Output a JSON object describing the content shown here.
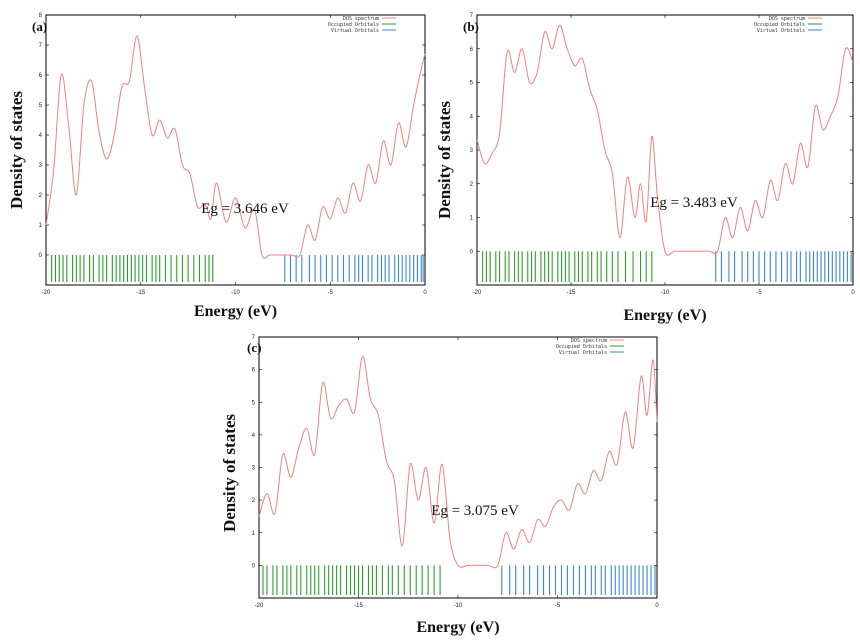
{
  "chart_data": [
    {
      "type": "line",
      "panel_label": "(a)",
      "annotation": "Eg = 3.646 eV",
      "xlabel": "Energy (eV)",
      "ylabel": "Density of states",
      "xlim": [
        -20,
        0
      ],
      "ylim": [
        -1,
        8
      ],
      "x_ticks": [
        "-20",
        "-15",
        "-10",
        "-5",
        "0"
      ],
      "y_ticks": [
        "0",
        "1",
        "2",
        "3",
        "4",
        "5",
        "6",
        "7",
        "8"
      ],
      "legend": [
        "DOS spectrum",
        "Occupied Orbitals",
        "Virtual Orbitals"
      ],
      "colors": {
        "dos": "#f08080",
        "occupied": "#2aa02a",
        "virtual": "#3a86d6"
      },
      "series": [
        {
          "name": "DOS spectrum",
          "x": [
            -20,
            -19.6,
            -19.2,
            -18.8,
            -18.4,
            -18.0,
            -17.6,
            -17.2,
            -16.8,
            -16.4,
            -16.0,
            -15.6,
            -15.2,
            -14.8,
            -14.4,
            -14.0,
            -13.6,
            -13.2,
            -12.8,
            -12.4,
            -12.0,
            -11.6,
            -11.3,
            -11.0,
            -10.5,
            -10.0,
            -9.5,
            -9.0,
            -8.6,
            -8.2,
            -7.8,
            -7.4,
            -7.0,
            -6.6,
            -6.2,
            -5.8,
            -5.4,
            -5.0,
            -4.6,
            -4.2,
            -3.8,
            -3.4,
            -3.0,
            -2.6,
            -2.2,
            -1.8,
            -1.4,
            -1.0,
            -0.6,
            -0.2,
            0
          ],
          "y": [
            1.0,
            2.8,
            6.0,
            4.3,
            2.0,
            5.0,
            5.8,
            4.1,
            3.2,
            4.0,
            5.6,
            5.8,
            7.3,
            5.6,
            4.0,
            4.5,
            3.9,
            4.2,
            3.0,
            2.7,
            1.6,
            1.7,
            1.2,
            2.4,
            1.1,
            1.9,
            0.9,
            1.5,
            0.0,
            0.0,
            0.0,
            0.0,
            0.0,
            0.0,
            1.0,
            0.5,
            1.6,
            1.2,
            1.9,
            1.4,
            2.4,
            1.8,
            3.0,
            2.4,
            3.8,
            3.0,
            4.4,
            3.6,
            5.0,
            6.2,
            6.7
          ]
        },
        {
          "name": "Occupied Orbitals",
          "x": [
            -19.7,
            -19.5,
            -19.3,
            -19.1,
            -18.9,
            -18.6,
            -18.4,
            -18.2,
            -18.0,
            -17.7,
            -17.5,
            -17.2,
            -17.0,
            -16.8,
            -16.5,
            -16.3,
            -16.1,
            -15.9,
            -15.7,
            -15.5,
            -15.3,
            -15.1,
            -14.9,
            -14.7,
            -14.4,
            -14.2,
            -14.0,
            -13.7,
            -13.4,
            -13.1,
            -12.8,
            -12.5,
            -12.2,
            -11.9,
            -11.6,
            -11.4,
            -11.2
          ]
        },
        {
          "name": "Virtual Orbitals",
          "x": [
            -7.4,
            -7.1,
            -6.8,
            -6.5,
            -6.1,
            -5.8,
            -5.5,
            -5.2,
            -4.9,
            -4.6,
            -4.3,
            -4.0,
            -3.7,
            -3.5,
            -3.3,
            -3.0,
            -2.8,
            -2.5,
            -2.3,
            -2.1,
            -1.9,
            -1.6,
            -1.4,
            -1.2,
            -1.0,
            -0.8,
            -0.6,
            -0.4,
            -0.2,
            -0.1
          ]
        }
      ]
    },
    {
      "type": "line",
      "panel_label": "(b)",
      "annotation": "Eg = 3.483 eV",
      "xlabel": "Energy (eV)",
      "ylabel": "Density of states",
      "xlim": [
        -20,
        0
      ],
      "ylim": [
        -1,
        7
      ],
      "x_ticks": [
        "-20",
        "-15",
        "-10",
        "-5",
        "0"
      ],
      "y_ticks": [
        "0",
        "1",
        "2",
        "3",
        "4",
        "5",
        "6",
        "7"
      ],
      "legend": [
        "DOS spectrum",
        "Occupied Orbitals",
        "Virtual Orbitals"
      ],
      "colors": {
        "dos": "#f08080",
        "occupied": "#2aa02a",
        "virtual": "#3a86d6"
      },
      "series": [
        {
          "name": "DOS spectrum",
          "x": [
            -20,
            -19.6,
            -19.2,
            -18.8,
            -18.4,
            -18.0,
            -17.6,
            -17.2,
            -16.8,
            -16.4,
            -16.0,
            -15.6,
            -15.2,
            -14.8,
            -14.4,
            -14.0,
            -13.6,
            -13.2,
            -12.8,
            -12.4,
            -12.0,
            -11.6,
            -11.3,
            -11.0,
            -10.7,
            -10.4,
            -10.0,
            -9.5,
            -9.0,
            -8.5,
            -8.0,
            -7.6,
            -7.2,
            -6.8,
            -6.4,
            -6.0,
            -5.6,
            -5.2,
            -4.8,
            -4.4,
            -4.0,
            -3.6,
            -3.2,
            -2.8,
            -2.4,
            -2.0,
            -1.6,
            -1.2,
            -0.8,
            -0.4,
            0
          ],
          "y": [
            3.3,
            2.6,
            2.9,
            3.5,
            5.9,
            5.3,
            6.0,
            5.0,
            5.3,
            6.5,
            6.0,
            6.7,
            6.0,
            5.5,
            5.7,
            4.8,
            4.2,
            3.0,
            2.3,
            0.4,
            2.2,
            1.0,
            2.0,
            0.9,
            3.4,
            1.6,
            0.0,
            0.0,
            0.0,
            0.0,
            0.0,
            0.0,
            0.0,
            1.0,
            0.4,
            1.3,
            0.6,
            1.5,
            1.0,
            2.1,
            1.5,
            2.6,
            2.0,
            3.2,
            2.5,
            4.3,
            3.6,
            4.0,
            4.6,
            6.0,
            5.6
          ]
        },
        {
          "name": "Occupied Orbitals",
          "x": [
            -19.7,
            -19.5,
            -19.3,
            -19.0,
            -18.8,
            -18.5,
            -18.3,
            -18.0,
            -17.8,
            -17.6,
            -17.3,
            -17.1,
            -16.9,
            -16.6,
            -16.4,
            -16.2,
            -16.0,
            -15.7,
            -15.5,
            -15.3,
            -15.1,
            -14.8,
            -14.6,
            -14.4,
            -14.1,
            -13.9,
            -13.6,
            -13.4,
            -13.1,
            -12.8,
            -12.5,
            -12.1,
            -11.7,
            -11.3,
            -11.0,
            -10.7
          ]
        },
        {
          "name": "Virtual Orbitals",
          "x": [
            -7.3,
            -7.0,
            -6.6,
            -6.3,
            -5.9,
            -5.6,
            -5.3,
            -5.0,
            -4.7,
            -4.4,
            -4.1,
            -3.8,
            -3.5,
            -3.3,
            -3.0,
            -2.8,
            -2.5,
            -2.3,
            -2.1,
            -1.9,
            -1.7,
            -1.5,
            -1.3,
            -1.1,
            -0.9,
            -0.7,
            -0.5,
            -0.3,
            -0.1
          ]
        }
      ]
    },
    {
      "type": "line",
      "panel_label": "(c)",
      "annotation": "Eg = 3.075 eV",
      "xlabel": "Energy (eV)",
      "ylabel": "Density of states",
      "xlim": [
        -20,
        0
      ],
      "ylim": [
        -1,
        7
      ],
      "x_ticks": [
        "-20",
        "-15",
        "-10",
        "-5",
        "0"
      ],
      "y_ticks": [
        "0",
        "1",
        "2",
        "3",
        "4",
        "5",
        "6",
        "7"
      ],
      "legend": [
        "DOS spectrum",
        "Occupied Orbitals",
        "Virtual Orbitals"
      ],
      "colors": {
        "dos": "#f08080",
        "occupied": "#2aa02a",
        "virtual": "#3a86d6"
      },
      "series": [
        {
          "name": "DOS spectrum",
          "x": [
            -20,
            -19.6,
            -19.2,
            -18.8,
            -18.4,
            -18.0,
            -17.6,
            -17.2,
            -16.8,
            -16.4,
            -16.0,
            -15.6,
            -15.2,
            -14.8,
            -14.4,
            -14.0,
            -13.6,
            -13.2,
            -12.8,
            -12.4,
            -12.0,
            -11.6,
            -11.2,
            -10.8,
            -10.4,
            -10.0,
            -9.5,
            -9.0,
            -8.5,
            -8.0,
            -7.6,
            -7.2,
            -6.8,
            -6.4,
            -6.0,
            -5.6,
            -5.2,
            -4.8,
            -4.4,
            -4.0,
            -3.6,
            -3.2,
            -2.8,
            -2.4,
            -2.0,
            -1.6,
            -1.2,
            -0.8,
            -0.5,
            -0.2,
            0
          ],
          "y": [
            1.5,
            2.2,
            1.6,
            3.4,
            2.7,
            3.6,
            4.2,
            3.4,
            5.6,
            4.5,
            4.9,
            5.1,
            4.7,
            6.4,
            5.1,
            4.6,
            3.2,
            2.6,
            0.6,
            3.1,
            2.0,
            3.0,
            1.3,
            3.1,
            0.8,
            0.0,
            0.0,
            0.0,
            0.0,
            0.0,
            1.0,
            0.5,
            1.1,
            0.7,
            1.4,
            1.2,
            1.8,
            2.0,
            1.7,
            2.5,
            2.2,
            2.9,
            2.6,
            3.5,
            3.1,
            4.7,
            3.6,
            5.8,
            4.6,
            6.3,
            4.4
          ]
        },
        {
          "name": "Occupied Orbitals",
          "x": [
            -19.8,
            -19.6,
            -19.3,
            -19.1,
            -18.8,
            -18.6,
            -18.4,
            -18.1,
            -17.9,
            -17.6,
            -17.4,
            -17.2,
            -17.0,
            -16.7,
            -16.5,
            -16.3,
            -16.1,
            -15.9,
            -15.6,
            -15.4,
            -15.2,
            -15.0,
            -14.8,
            -14.5,
            -14.3,
            -14.1,
            -13.8,
            -13.5,
            -13.3,
            -13.0,
            -12.7,
            -12.4,
            -12.1,
            -11.8,
            -11.5,
            -11.2,
            -10.9
          ]
        },
        {
          "name": "Virtual Orbitals",
          "x": [
            -7.8,
            -7.4,
            -7.1,
            -6.7,
            -6.4,
            -6.0,
            -5.7,
            -5.4,
            -5.1,
            -4.8,
            -4.5,
            -4.2,
            -3.9,
            -3.6,
            -3.3,
            -3.1,
            -2.8,
            -2.6,
            -2.3,
            -2.1,
            -1.9,
            -1.7,
            -1.5,
            -1.3,
            -1.1,
            -0.9,
            -0.7,
            -0.5,
            -0.3,
            -0.1
          ]
        }
      ]
    }
  ]
}
